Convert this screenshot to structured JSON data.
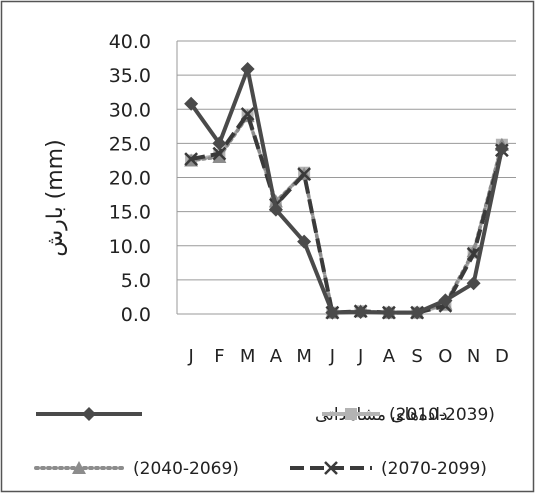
{
  "chart_data": {
    "type": "line",
    "title": "",
    "xlabel": "",
    "ylabel": "بارش (mm)",
    "ylim": [
      0,
      40
    ],
    "y_ticks": [
      "0.0",
      "5.0",
      "10.0",
      "15.0",
      "20.0",
      "25.0",
      "30.0",
      "35.0",
      "40.0"
    ],
    "categories": [
      "J",
      "F",
      "M",
      "A",
      "M",
      "J",
      "J",
      "A",
      "S",
      "O",
      "N",
      "D"
    ],
    "grid": "horizontal",
    "legend_position": "bottom",
    "series": [
      {
        "name": "داده‌های مشاهداتی",
        "values": [
          30.8,
          25.0,
          35.9,
          15.3,
          10.6,
          0.2,
          0.3,
          0.2,
          0.2,
          2.0,
          4.5,
          24.2
        ],
        "color": "#4a4a4a",
        "line_style": "solid",
        "marker": "diamond"
      },
      {
        "name": "(2010-2039)",
        "values": [
          22.5,
          23.3,
          29.0,
          16.3,
          20.7,
          0.2,
          0.4,
          0.2,
          0.2,
          1.3,
          9.0,
          24.8
        ],
        "color": "#b3b3b3",
        "line_style": "solid",
        "marker": "square"
      },
      {
        "name": "(2040-2069)",
        "values": [
          22.5,
          23.0,
          29.0,
          16.5,
          20.5,
          0.2,
          0.4,
          0.2,
          0.2,
          1.5,
          9.2,
          24.8
        ],
        "color": "#8c8c8c",
        "line_style": "dotted",
        "marker": "triangle"
      },
      {
        "name": "(2070-2099)",
        "values": [
          22.7,
          23.5,
          29.3,
          16.0,
          20.5,
          0.2,
          0.4,
          0.2,
          0.2,
          1.2,
          8.8,
          24.0
        ],
        "color": "#3a3a3a",
        "line_style": "dashed",
        "marker": "x"
      }
    ]
  }
}
